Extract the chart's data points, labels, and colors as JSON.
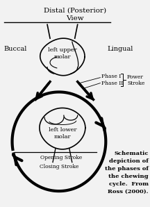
{
  "title": "Distal (Posterior)\nView",
  "buccal_label": "Buccal",
  "lingual_label": "Lingual",
  "upper_molar_label": "left upper\nmolar",
  "lower_molar_label": "left lower\nmolar",
  "phase1_label": "Phase I",
  "phase2_label": "Phase II",
  "power_label": "Power",
  "stroke_label": "Stroke",
  "opening_label": "Opening Stroke",
  "closing_label": "Closing Stroke",
  "caption": "Schematic\ndepiction of\nthe phases of\nthe chewing\ncycle.  From\nRoss (2000).",
  "bg_color": "#f2f2f2",
  "line_color": "#000000",
  "fig_width": 2.16,
  "fig_height": 2.98
}
